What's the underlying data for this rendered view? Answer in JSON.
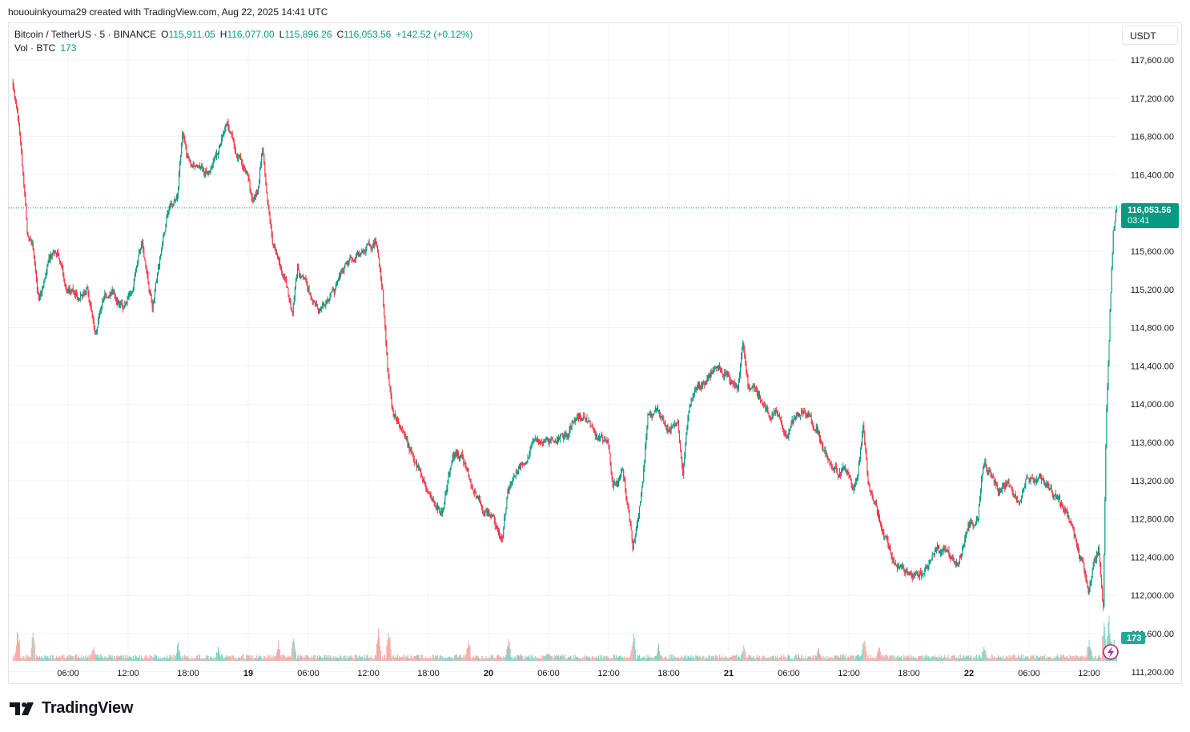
{
  "header": {
    "attribution": "hououinkyouma29 created with TradingView.com, Aug 22, 2025 14:41 UTC"
  },
  "legend": {
    "symbol": "Bitcoin / TetherUS · 5 · BINANCE",
    "open_label": "O",
    "open": "115,911.05",
    "high_label": "H",
    "high": "116,077.00",
    "low_label": "L",
    "low": "115,896.26",
    "close_label": "C",
    "close": "116,053.56",
    "change": "+142.52 (+0.12%)",
    "vol_label": "Vol · BTC",
    "vol_value": "173"
  },
  "currency_button": "USDT",
  "price_badge": {
    "price": "116,053.56",
    "countdown": "03:41"
  },
  "volume_badge": "173",
  "colors": {
    "up": "#089981",
    "down": "#f23645",
    "up_vol": "#7fd1c2",
    "down_vol": "#f7a9a7",
    "grid": "#f0f3fa",
    "text": "#131722"
  },
  "footer": {
    "brand": "TradingView",
    "logo_icon": "tradingview-logo-icon"
  },
  "flash_icon": "lightning-icon",
  "chart_data": {
    "type": "candlestick",
    "symbol": "Bitcoin / TetherUS",
    "interval": "5",
    "ylim": [
      111000,
      117900
    ],
    "y_ticks": [
      "117,600.00",
      "117,200.00",
      "116,800.00",
      "116,400.00",
      "116,000.00",
      "115,600.00",
      "115,200.00",
      "114,800.00",
      "114,400.00",
      "114,000.00",
      "113,600.00",
      "113,200.00",
      "112,800.00",
      "112,400.00",
      "112,000.00",
      "111,600.00",
      "111,200.00"
    ],
    "x_ticks": [
      {
        "label": "06:00",
        "hours": 6
      },
      {
        "label": "12:00",
        "hours": 12
      },
      {
        "label": "18:00",
        "hours": 18
      },
      {
        "label": "19",
        "hours": 24
      },
      {
        "label": "06:00",
        "hours": 30
      },
      {
        "label": "12:00",
        "hours": 36
      },
      {
        "label": "18:00",
        "hours": 42
      },
      {
        "label": "20",
        "hours": 48
      },
      {
        "label": "06:00",
        "hours": 54
      },
      {
        "label": "12:00",
        "hours": 60
      },
      {
        "label": "18:00",
        "hours": 66
      },
      {
        "label": "21",
        "hours": 72
      },
      {
        "label": "06:00",
        "hours": 78
      },
      {
        "label": "12:00",
        "hours": 84
      },
      {
        "label": "18:00",
        "hours": 90
      },
      {
        "label": "22",
        "hours": 96
      },
      {
        "label": "06:00",
        "hours": 102
      },
      {
        "label": "12:00",
        "hours": 108
      }
    ],
    "last_price": 116053.56,
    "price_path": [
      [
        0.5,
        117380
      ],
      [
        1.2,
        116900
      ],
      [
        2,
        115800
      ],
      [
        2.5,
        115650
      ],
      [
        3.2,
        115100
      ],
      [
        4,
        115500
      ],
      [
        5,
        115650
      ],
      [
        6,
        115200
      ],
      [
        7,
        115150
      ],
      [
        8,
        115200
      ],
      [
        8.8,
        114720
      ],
      [
        9.5,
        115100
      ],
      [
        10.5,
        115150
      ],
      [
        11.5,
        115000
      ],
      [
        12.5,
        115200
      ],
      [
        13.5,
        115700
      ],
      [
        14.5,
        115000
      ],
      [
        15,
        115350
      ],
      [
        15.5,
        115700
      ],
      [
        16,
        115950
      ],
      [
        17,
        116200
      ],
      [
        17.5,
        116800
      ],
      [
        18,
        116550
      ],
      [
        19,
        116500
      ],
      [
        20,
        116400
      ],
      [
        21,
        116650
      ],
      [
        22,
        116950
      ],
      [
        23,
        116600
      ],
      [
        24,
        116450
      ],
      [
        24.5,
        116100
      ],
      [
        25,
        116250
      ],
      [
        25.5,
        116700
      ],
      [
        26,
        116100
      ],
      [
        26.5,
        115700
      ],
      [
        27,
        115600
      ],
      [
        28,
        115200
      ],
      [
        28.5,
        114950
      ],
      [
        29,
        115400
      ],
      [
        30,
        115200
      ],
      [
        31,
        114950
      ],
      [
        32,
        115100
      ],
      [
        33,
        115250
      ],
      [
        34,
        115500
      ],
      [
        35,
        115550
      ],
      [
        36,
        115650
      ],
      [
        36.8,
        115700
      ],
      [
        37.5,
        115200
      ],
      [
        38,
        114400
      ],
      [
        38.5,
        113900
      ],
      [
        39.5,
        113800
      ],
      [
        40.5,
        113400
      ],
      [
        41.5,
        113200
      ],
      [
        42.5,
        113000
      ],
      [
        43.5,
        112850
      ],
      [
        44.5,
        113500
      ],
      [
        45.5,
        113450
      ],
      [
        46.5,
        113100
      ],
      [
        47.5,
        112900
      ],
      [
        48.5,
        112800
      ],
      [
        49.5,
        112600
      ],
      [
        50,
        113100
      ],
      [
        51,
        113300
      ],
      [
        52,
        113500
      ],
      [
        53,
        113650
      ],
      [
        54,
        113600
      ],
      [
        55,
        113650
      ],
      [
        56,
        113700
      ],
      [
        57,
        113900
      ],
      [
        58,
        113800
      ],
      [
        59,
        113650
      ],
      [
        60,
        113600
      ],
      [
        60.5,
        113100
      ],
      [
        61.5,
        113300
      ],
      [
        62.5,
        112500
      ],
      [
        63.5,
        113200
      ],
      [
        64,
        113900
      ],
      [
        65,
        113900
      ],
      [
        66,
        113700
      ],
      [
        67,
        113800
      ],
      [
        67.5,
        113300
      ],
      [
        68,
        113900
      ],
      [
        69,
        114200
      ],
      [
        70,
        114250
      ],
      [
        71,
        114400
      ],
      [
        72,
        114300
      ],
      [
        73,
        114100
      ],
      [
        73.5,
        114650
      ],
      [
        74,
        114200
      ],
      [
        75,
        114100
      ],
      [
        76,
        113900
      ],
      [
        77,
        113850
      ],
      [
        78,
        113700
      ],
      [
        79,
        113900
      ],
      [
        80,
        113900
      ],
      [
        81,
        113700
      ],
      [
        82,
        113400
      ],
      [
        83,
        113300
      ],
      [
        84,
        113300
      ],
      [
        84.5,
        113100
      ],
      [
        85,
        113300
      ],
      [
        85.5,
        113850
      ],
      [
        86,
        113200
      ],
      [
        87,
        112850
      ],
      [
        88,
        112500
      ],
      [
        89,
        112300
      ],
      [
        90,
        112250
      ],
      [
        91,
        112200
      ],
      [
        92,
        112350
      ],
      [
        93,
        112500
      ],
      [
        94,
        112450
      ],
      [
        95,
        112300
      ],
      [
        96,
        112700
      ],
      [
        97,
        112850
      ],
      [
        97.5,
        113400
      ],
      [
        98,
        113300
      ],
      [
        99,
        113100
      ],
      [
        100,
        113200
      ],
      [
        101,
        113000
      ],
      [
        102,
        113250
      ],
      [
        103,
        113200
      ],
      [
        104,
        113150
      ],
      [
        105,
        113000
      ],
      [
        106,
        112800
      ],
      [
        107,
        112500
      ],
      [
        107.5,
        112300
      ],
      [
        108,
        111950
      ],
      [
        108.5,
        112300
      ],
      [
        109,
        112500
      ],
      [
        109.5,
        111900
      ],
      [
        109.8,
        113900
      ],
      [
        110.2,
        115100
      ],
      [
        110.5,
        115800
      ],
      [
        110.8,
        116054
      ]
    ],
    "volume_ylim": [
      0,
      800
    ],
    "volume_spikes": [
      {
        "hours": 1,
        "btc": 480
      },
      {
        "hours": 2.5,
        "btc": 380
      },
      {
        "hours": 8.5,
        "btc": 220
      },
      {
        "hours": 17,
        "btc": 260
      },
      {
        "hours": 21,
        "btc": 200
      },
      {
        "hours": 27,
        "btc": 280
      },
      {
        "hours": 28.5,
        "btc": 360
      },
      {
        "hours": 37,
        "btc": 420
      },
      {
        "hours": 38,
        "btc": 500
      },
      {
        "hours": 46,
        "btc": 320
      },
      {
        "hours": 50,
        "btc": 300
      },
      {
        "hours": 54,
        "btc": 160
      },
      {
        "hours": 62.5,
        "btc": 380
      },
      {
        "hours": 65,
        "btc": 220
      },
      {
        "hours": 73.5,
        "btc": 240
      },
      {
        "hours": 81,
        "btc": 180
      },
      {
        "hours": 85.5,
        "btc": 320
      },
      {
        "hours": 87,
        "btc": 220
      },
      {
        "hours": 97.5,
        "btc": 240
      },
      {
        "hours": 108,
        "btc": 320
      },
      {
        "hours": 109.5,
        "btc": 560
      },
      {
        "hours": 110,
        "btc": 620
      },
      {
        "hours": 110.5,
        "btc": 300
      }
    ]
  }
}
